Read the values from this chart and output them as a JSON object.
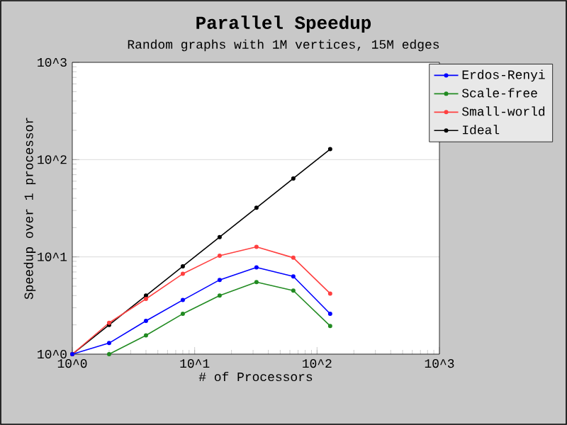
{
  "chart_data": {
    "type": "line",
    "title": "Parallel Speedup",
    "subtitle": "Random graphs with 1M vertices, 15M edges",
    "xlabel": "# of Processors",
    "ylabel": "Speedup over 1 processor",
    "log": "xy",
    "xlim": [
      1,
      1000
    ],
    "ylim": [
      1,
      1000
    ],
    "xticks": [
      {
        "value": 1,
        "label": "10^0"
      },
      {
        "value": 10,
        "label": "10^1"
      },
      {
        "value": 100,
        "label": "10^2"
      },
      {
        "value": 1000,
        "label": "10^3"
      }
    ],
    "yticks": [
      {
        "value": 1,
        "label": "10^0"
      },
      {
        "value": 10,
        "label": "10^1"
      },
      {
        "value": 100,
        "label": "10^2"
      },
      {
        "value": 1000,
        "label": "10^3"
      }
    ],
    "grid": "y",
    "legend": "top right",
    "marker": "circle",
    "series": [
      {
        "name": "Erdos-Renyi",
        "color": "#0000ff",
        "x": [
          1,
          2,
          4,
          8,
          16,
          32,
          64,
          128
        ],
        "values": [
          1,
          1.3,
          2.2,
          3.6,
          5.8,
          7.8,
          6.3,
          2.6
        ]
      },
      {
        "name": "Scale-free",
        "color": "#228b22",
        "x": [
          2,
          4,
          8,
          16,
          32,
          64,
          128
        ],
        "values": [
          1,
          1.56,
          2.6,
          4.0,
          5.5,
          4.5,
          1.95
        ]
      },
      {
        "name": "Small-world",
        "color": "#ff4040",
        "x": [
          1,
          2,
          4,
          8,
          16,
          32,
          64,
          128
        ],
        "values": [
          1,
          2.1,
          3.7,
          6.7,
          10.3,
          12.7,
          9.8,
          4.2
        ]
      },
      {
        "name": "Ideal",
        "color": "#000000",
        "x": [
          1,
          2,
          4,
          8,
          16,
          32,
          64,
          128
        ],
        "values": [
          1,
          2,
          4,
          8,
          16,
          32,
          64,
          128
        ]
      }
    ]
  }
}
